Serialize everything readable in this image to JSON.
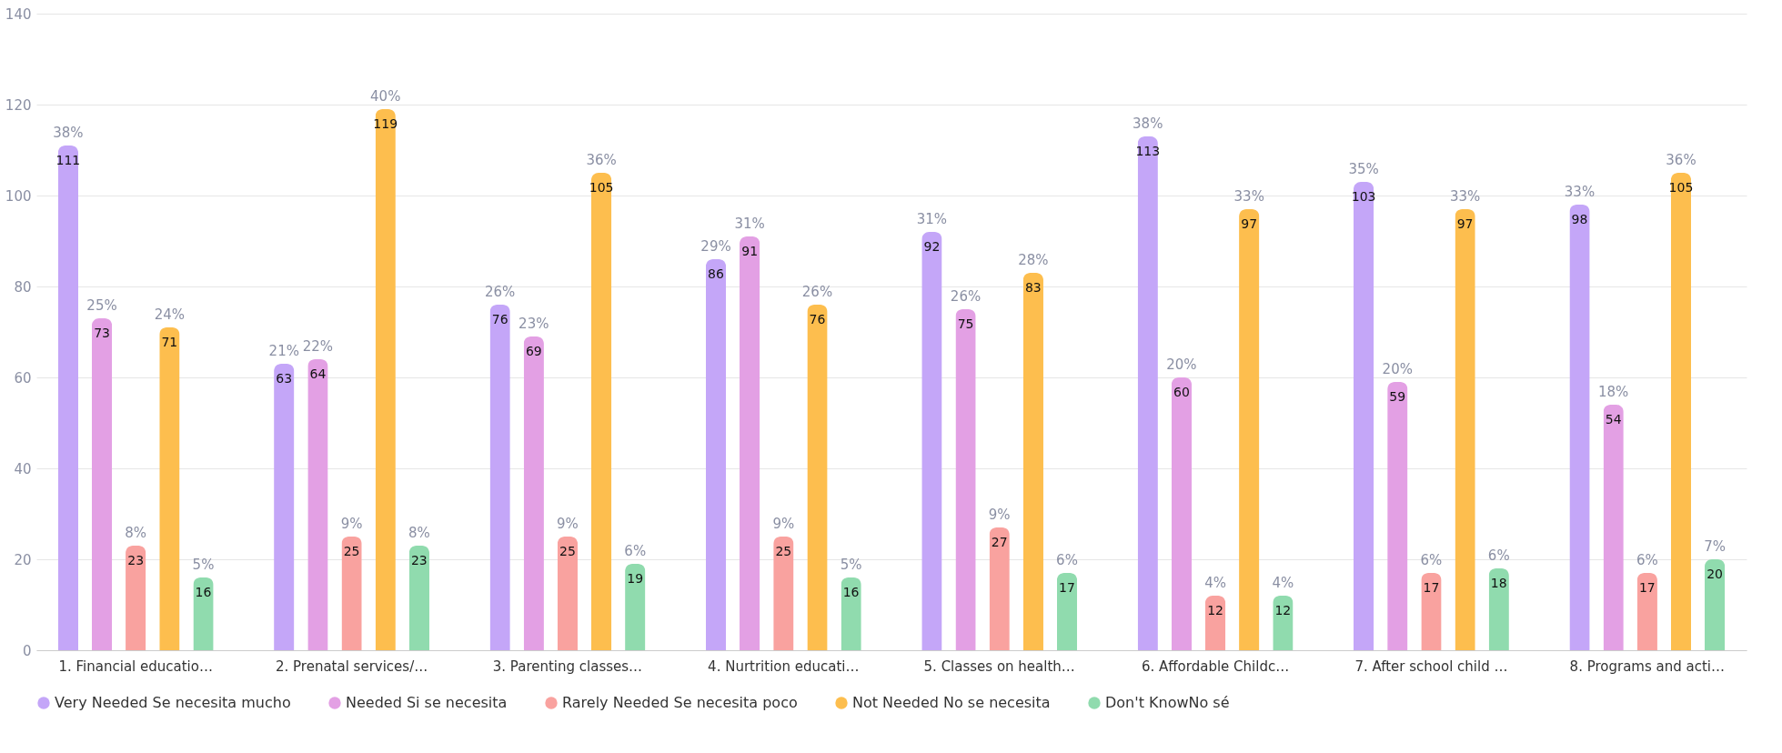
{
  "chart_data": {
    "type": "bar",
    "categories": [
      "1. Financial educatio…",
      "2. Prenatal services/…",
      "3. Parenting classes…",
      "4. Nurtrition educati…",
      "5. Classes on health…",
      "6. Affordable Childc…",
      "7. After school child …",
      "8. Programs and acti…"
    ],
    "series": [
      {
        "name": "Very Needed Se necesita mucho",
        "color": "#c4a6f8",
        "values": [
          111,
          63,
          76,
          86,
          92,
          113,
          103,
          98
        ]
      },
      {
        "name": "Needed Si se necesita",
        "color": "#e3a0e4",
        "values": [
          73,
          64,
          69,
          91,
          75,
          60,
          59,
          54
        ]
      },
      {
        "name": "Rarely Needed Se necesita poco",
        "color": "#f9a29f",
        "values": [
          23,
          25,
          25,
          25,
          27,
          12,
          17,
          17
        ]
      },
      {
        "name": "Not Needed No se necesita",
        "color": "#fdbe4e",
        "values": [
          71,
          119,
          105,
          76,
          83,
          97,
          97,
          105
        ]
      },
      {
        "name": "Don't KnowNo sé",
        "color": "#90dbae",
        "values": [
          16,
          23,
          19,
          16,
          17,
          12,
          18,
          20
        ]
      }
    ],
    "annotations": [
      "38%",
      "21%",
      "26%",
      "29%",
      "31%",
      "38%",
      "35%",
      "33%",
      "25%",
      "22%",
      "23%",
      "31%",
      "26%",
      "20%",
      "20%",
      "18%",
      "8%",
      "9%",
      "9%",
      "9%",
      "9%",
      "4%",
      "6%",
      "6%",
      "24%",
      "40%",
      "36%",
      "26%",
      "28%",
      "33%",
      "33%",
      "36%",
      "5%",
      "8%",
      "6%",
      "5%",
      "6%",
      "4%",
      "6%",
      "7%"
    ],
    "ylim": [
      0,
      140
    ],
    "yticks": [
      0,
      20,
      40,
      60,
      80,
      100,
      120,
      140
    ],
    "grid": "y",
    "legend": "bottom",
    "data_labels": true
  }
}
